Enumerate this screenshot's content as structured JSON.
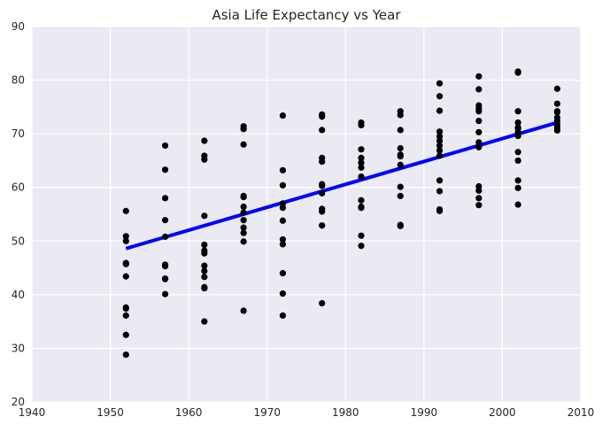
{
  "chart_data": {
    "type": "scatter",
    "title": "Asia Life Expectancy vs Year",
    "xlabel": "",
    "ylabel": "",
    "xlim": [
      1940,
      2010
    ],
    "ylim": [
      20,
      90
    ],
    "xticks": [
      "1940",
      "1950",
      "1960",
      "1970",
      "1980",
      "1990",
      "2000",
      "2010"
    ],
    "yticks": [
      "20",
      "30",
      "40",
      "50",
      "60",
      "70",
      "80",
      "90"
    ],
    "grid": true,
    "colors": {
      "background": "#eaeaf2",
      "points": "#000000",
      "fit_line": "#0000ff"
    },
    "points": [
      [
        1952,
        28.8
      ],
      [
        1952,
        32.5
      ],
      [
        1952,
        36.1
      ],
      [
        1952,
        37.4
      ],
      [
        1952,
        37.6
      ],
      [
        1952,
        43.4
      ],
      [
        1952,
        45.7
      ],
      [
        1952,
        45.9
      ],
      [
        1952,
        50.0
      ],
      [
        1952,
        50.9
      ],
      [
        1952,
        55.6
      ],
      [
        1957,
        40.1
      ],
      [
        1957,
        42.9
      ],
      [
        1957,
        43.0
      ],
      [
        1957,
        45.3
      ],
      [
        1957,
        45.6
      ],
      [
        1957,
        50.8
      ],
      [
        1957,
        53.9
      ],
      [
        1957,
        58.0
      ],
      [
        1957,
        63.3
      ],
      [
        1957,
        67.8
      ],
      [
        1962,
        35.0
      ],
      [
        1962,
        41.2
      ],
      [
        1962,
        41.4
      ],
      [
        1962,
        43.3
      ],
      [
        1962,
        44.4
      ],
      [
        1962,
        45.4
      ],
      [
        1962,
        47.7
      ],
      [
        1962,
        48.2
      ],
      [
        1962,
        49.3
      ],
      [
        1962,
        54.7
      ],
      [
        1962,
        65.2
      ],
      [
        1962,
        65.9
      ],
      [
        1962,
        68.7
      ],
      [
        1967,
        37.0
      ],
      [
        1967,
        49.9
      ],
      [
        1967,
        51.5
      ],
      [
        1967,
        52.5
      ],
      [
        1967,
        53.9
      ],
      [
        1967,
        55.3
      ],
      [
        1967,
        56.4
      ],
      [
        1967,
        58.2
      ],
      [
        1967,
        58.4
      ],
      [
        1967,
        68.0
      ],
      [
        1967,
        70.9
      ],
      [
        1967,
        71.4
      ],
      [
        1972,
        36.1
      ],
      [
        1972,
        40.2
      ],
      [
        1972,
        44.0
      ],
      [
        1972,
        49.4
      ],
      [
        1972,
        50.3
      ],
      [
        1972,
        53.8
      ],
      [
        1972,
        56.2
      ],
      [
        1972,
        57.0
      ],
      [
        1972,
        60.4
      ],
      [
        1972,
        63.2
      ],
      [
        1972,
        73.4
      ],
      [
        1977,
        38.4
      ],
      [
        1977,
        52.9
      ],
      [
        1977,
        55.5
      ],
      [
        1977,
        56.0
      ],
      [
        1977,
        58.9
      ],
      [
        1977,
        60.3
      ],
      [
        1977,
        60.6
      ],
      [
        1977,
        64.8
      ],
      [
        1977,
        65.5
      ],
      [
        1977,
        70.7
      ],
      [
        1977,
        73.2
      ],
      [
        1977,
        73.6
      ],
      [
        1982,
        49.1
      ],
      [
        1982,
        51.0
      ],
      [
        1982,
        56.2
      ],
      [
        1982,
        56.4
      ],
      [
        1982,
        57.6
      ],
      [
        1982,
        62.0
      ],
      [
        1982,
        63.7
      ],
      [
        1982,
        64.6
      ],
      [
        1982,
        65.5
      ],
      [
        1982,
        67.1
      ],
      [
        1982,
        71.6
      ],
      [
        1982,
        72.1
      ],
      [
        1987,
        52.8
      ],
      [
        1987,
        53.0
      ],
      [
        1987,
        58.4
      ],
      [
        1987,
        60.1
      ],
      [
        1987,
        64.2
      ],
      [
        1987,
        65.8
      ],
      [
        1987,
        66.1
      ],
      [
        1987,
        67.3
      ],
      [
        1987,
        70.7
      ],
      [
        1987,
        73.5
      ],
      [
        1987,
        74.2
      ],
      [
        1992,
        55.6
      ],
      [
        1992,
        55.9
      ],
      [
        1992,
        59.3
      ],
      [
        1992,
        61.3
      ],
      [
        1992,
        65.9
      ],
      [
        1992,
        66.9
      ],
      [
        1992,
        67.8
      ],
      [
        1992,
        68.7
      ],
      [
        1992,
        69.5
      ],
      [
        1992,
        70.4
      ],
      [
        1992,
        74.3
      ],
      [
        1992,
        77.0
      ],
      [
        1992,
        79.4
      ],
      [
        1997,
        56.7
      ],
      [
        1997,
        58.0
      ],
      [
        1997,
        59.4
      ],
      [
        1997,
        60.2
      ],
      [
        1997,
        67.5
      ],
      [
        1997,
        68.4
      ],
      [
        1997,
        70.3
      ],
      [
        1997,
        72.4
      ],
      [
        1997,
        74.2
      ],
      [
        1997,
        74.7
      ],
      [
        1997,
        75.3
      ],
      [
        1997,
        78.3
      ],
      [
        1997,
        80.7
      ],
      [
        2002,
        56.8
      ],
      [
        2002,
        59.9
      ],
      [
        2002,
        61.3
      ],
      [
        2002,
        65.0
      ],
      [
        2002,
        66.6
      ],
      [
        2002,
        69.6
      ],
      [
        2002,
        70.3
      ],
      [
        2002,
        71.0
      ],
      [
        2002,
        71.2
      ],
      [
        2002,
        72.1
      ],
      [
        2002,
        74.2
      ],
      [
        2002,
        81.4
      ],
      [
        2002,
        81.6
      ],
      [
        2007,
        70.6
      ],
      [
        2007,
        71.1
      ],
      [
        2007,
        71.7
      ],
      [
        2007,
        72.4
      ],
      [
        2007,
        73.0
      ],
      [
        2007,
        74.0
      ],
      [
        2007,
        74.2
      ],
      [
        2007,
        75.6
      ],
      [
        2007,
        78.4
      ]
    ],
    "fit_line": {
      "x": [
        1952,
        2007
      ],
      "y": [
        48.6,
        72.1
      ]
    }
  }
}
